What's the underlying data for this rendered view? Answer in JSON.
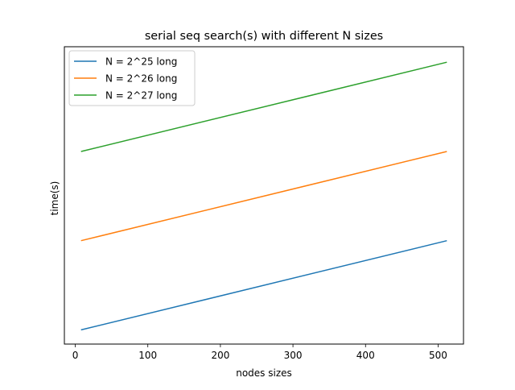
{
  "chart_data": {
    "type": "line",
    "title": "serial seq search(s) with different N sizes",
    "xlabel": "nodes sizes",
    "ylabel": "time(s)",
    "xlim": [
      -15,
      535
    ],
    "ylim": [
      0,
      1
    ],
    "x_ticks": [
      0,
      100,
      200,
      300,
      400,
      500
    ],
    "y_ticks": [],
    "grid": false,
    "legend_position": "top-left",
    "series": [
      {
        "name": "N = 2^25 long",
        "color": "#1f77b4",
        "x": [
          8,
          512
        ],
        "y": [
          0.05,
          0.365
        ]
      },
      {
        "name": "N = 2^26 long",
        "color": "#ff7f0e",
        "x": [
          8,
          512
        ],
        "y": [
          0.365,
          0.68
        ]
      },
      {
        "name": "N = 2^27 long",
        "color": "#2ca02c",
        "x": [
          8,
          512
        ],
        "y": [
          0.68,
          0.995
        ]
      }
    ]
  }
}
